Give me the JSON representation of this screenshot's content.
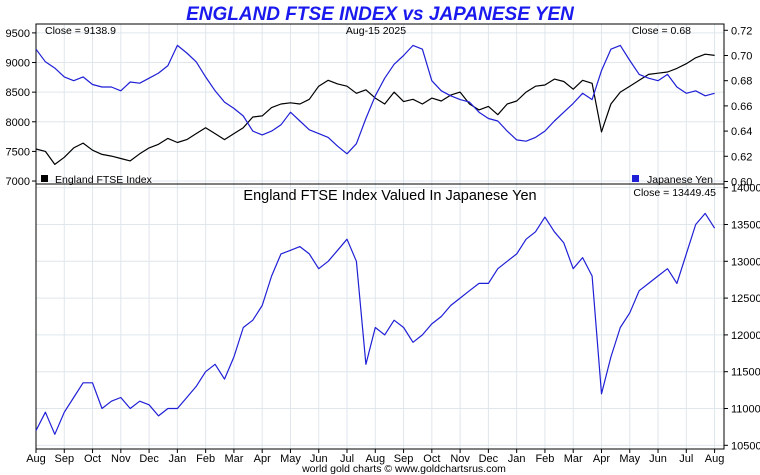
{
  "title": "ENGLAND FTSE INDEX vs JAPANESE YEN",
  "footer": "world gold charts © www.goldchartsrus.com",
  "chart_data": [
    {
      "type": "line",
      "panel": "top",
      "date_label": "Aug-15  2025",
      "left_close": "Close = 9138.9",
      "right_close": "Close = 0.68",
      "y_left": {
        "ticks": [
          7000,
          7500,
          8000,
          8500,
          9000,
          9500
        ],
        "ylim": [
          6950,
          9650
        ]
      },
      "y_right": {
        "ticks": [
          "0.60",
          "0.62",
          "0.64",
          "0.66",
          "0.68",
          "0.70",
          "0.72"
        ],
        "ylim": [
          0.598,
          0.725
        ]
      },
      "legend": "bottom",
      "series": [
        {
          "name": "England FTSE Index",
          "axis": "left",
          "color": "#000000",
          "values": [
            [
              0,
              7540
            ],
            [
              2,
              7500
            ],
            [
              4,
              7280
            ],
            [
              6,
              7400
            ],
            [
              8,
              7560
            ],
            [
              10,
              7640
            ],
            [
              12,
              7520
            ],
            [
              14,
              7450
            ],
            [
              16,
              7420
            ],
            [
              18,
              7380
            ],
            [
              20,
              7340
            ],
            [
              22,
              7460
            ],
            [
              24,
              7560
            ],
            [
              26,
              7620
            ],
            [
              28,
              7720
            ],
            [
              30,
              7650
            ],
            [
              32,
              7700
            ],
            [
              34,
              7800
            ],
            [
              36,
              7900
            ],
            [
              38,
              7800
            ],
            [
              40,
              7700
            ],
            [
              42,
              7800
            ],
            [
              44,
              7900
            ],
            [
              46,
              8080
            ],
            [
              48,
              8100
            ],
            [
              50,
              8240
            ],
            [
              52,
              8300
            ],
            [
              54,
              8320
            ],
            [
              56,
              8300
            ],
            [
              58,
              8380
            ],
            [
              60,
              8600
            ],
            [
              62,
              8700
            ],
            [
              64,
              8640
            ],
            [
              66,
              8600
            ],
            [
              68,
              8480
            ],
            [
              70,
              8540
            ],
            [
              72,
              8400
            ],
            [
              74,
              8300
            ],
            [
              76,
              8500
            ],
            [
              78,
              8340
            ],
            [
              80,
              8380
            ],
            [
              82,
              8300
            ],
            [
              84,
              8400
            ],
            [
              86,
              8350
            ],
            [
              88,
              8450
            ],
            [
              90,
              8500
            ],
            [
              92,
              8300
            ],
            [
              94,
              8200
            ],
            [
              96,
              8260
            ],
            [
              98,
              8120
            ],
            [
              100,
              8300
            ],
            [
              102,
              8350
            ],
            [
              104,
              8500
            ],
            [
              106,
              8600
            ],
            [
              108,
              8620
            ],
            [
              110,
              8720
            ],
            [
              112,
              8680
            ],
            [
              114,
              8550
            ],
            [
              116,
              8700
            ],
            [
              118,
              8650
            ],
            [
              120,
              7830
            ],
            [
              122,
              8300
            ],
            [
              124,
              8500
            ],
            [
              126,
              8600
            ],
            [
              128,
              8700
            ],
            [
              130,
              8800
            ],
            [
              132,
              8820
            ],
            [
              134,
              8840
            ],
            [
              136,
              8900
            ],
            [
              138,
              8980
            ],
            [
              140,
              9080
            ],
            [
              142,
              9140
            ],
            [
              144,
              9120
            ]
          ]
        },
        {
          "name": "Japanese Yen",
          "axis": "right",
          "color": "#1f1fd6",
          "values": [
            [
              0,
              0.705
            ],
            [
              2,
              0.695
            ],
            [
              4,
              0.69
            ],
            [
              6,
              0.683
            ],
            [
              8,
              0.68
            ],
            [
              10,
              0.683
            ],
            [
              12,
              0.677
            ],
            [
              14,
              0.675
            ],
            [
              16,
              0.675
            ],
            [
              18,
              0.672
            ],
            [
              20,
              0.679
            ],
            [
              22,
              0.678
            ],
            [
              24,
              0.682
            ],
            [
              26,
              0.686
            ],
            [
              28,
              0.692
            ],
            [
              30,
              0.708
            ],
            [
              32,
              0.702
            ],
            [
              34,
              0.695
            ],
            [
              36,
              0.683
            ],
            [
              38,
              0.672
            ],
            [
              40,
              0.663
            ],
            [
              42,
              0.658
            ],
            [
              44,
              0.652
            ],
            [
              46,
              0.64
            ],
            [
              48,
              0.637
            ],
            [
              50,
              0.64
            ],
            [
              52,
              0.645
            ],
            [
              54,
              0.655
            ],
            [
              56,
              0.648
            ],
            [
              58,
              0.641
            ],
            [
              60,
              0.638
            ],
            [
              62,
              0.635
            ],
            [
              64,
              0.628
            ],
            [
              66,
              0.622
            ],
            [
              68,
              0.63
            ],
            [
              70,
              0.65
            ],
            [
              72,
              0.668
            ],
            [
              74,
              0.682
            ],
            [
              76,
              0.693
            ],
            [
              78,
              0.7
            ],
            [
              80,
              0.708
            ],
            [
              82,
              0.705
            ],
            [
              84,
              0.68
            ],
            [
              86,
              0.672
            ],
            [
              88,
              0.668
            ],
            [
              90,
              0.665
            ],
            [
              92,
              0.663
            ],
            [
              94,
              0.655
            ],
            [
              96,
              0.65
            ],
            [
              98,
              0.648
            ],
            [
              100,
              0.64
            ],
            [
              102,
              0.633
            ],
            [
              104,
              0.632
            ],
            [
              106,
              0.635
            ],
            [
              108,
              0.64
            ],
            [
              110,
              0.648
            ],
            [
              112,
              0.655
            ],
            [
              114,
              0.662
            ],
            [
              116,
              0.67
            ],
            [
              118,
              0.665
            ],
            [
              120,
              0.688
            ],
            [
              122,
              0.705
            ],
            [
              124,
              0.708
            ],
            [
              126,
              0.696
            ],
            [
              128,
              0.685
            ],
            [
              130,
              0.682
            ],
            [
              132,
              0.68
            ],
            [
              134,
              0.685
            ],
            [
              136,
              0.675
            ],
            [
              138,
              0.67
            ],
            [
              140,
              0.672
            ],
            [
              142,
              0.668
            ],
            [
              144,
              0.67
            ]
          ]
        }
      ]
    },
    {
      "type": "line",
      "panel": "bottom",
      "title": "England FTSE Index Valued In Japanese Yen",
      "right_close": "Close = 13449.45",
      "y_right": {
        "ticks": [
          10500,
          11000,
          11500,
          12000,
          12500,
          13000,
          13500,
          14000
        ],
        "ylim": [
          10450,
          14050
        ]
      },
      "series": [
        {
          "name": "",
          "color": "#1f1fd6",
          "values": [
            [
              0,
              10700
            ],
            [
              2,
              10950
            ],
            [
              4,
              10650
            ],
            [
              6,
              10950
            ],
            [
              8,
              11150
            ],
            [
              10,
              11350
            ],
            [
              12,
              11350
            ],
            [
              14,
              11000
            ],
            [
              16,
              11100
            ],
            [
              18,
              11150
            ],
            [
              20,
              11000
            ],
            [
              22,
              11100
            ],
            [
              24,
              11050
            ],
            [
              26,
              10900
            ],
            [
              28,
              11000
            ],
            [
              30,
              11000
            ],
            [
              32,
              11150
            ],
            [
              34,
              11300
            ],
            [
              36,
              11500
            ],
            [
              38,
              11600
            ],
            [
              40,
              11400
            ],
            [
              42,
              11700
            ],
            [
              44,
              12100
            ],
            [
              46,
              12200
            ],
            [
              48,
              12400
            ],
            [
              50,
              12800
            ],
            [
              52,
              13100
            ],
            [
              54,
              13150
            ],
            [
              56,
              13200
            ],
            [
              58,
              13100
            ],
            [
              60,
              12900
            ],
            [
              62,
              13000
            ],
            [
              64,
              13150
            ],
            [
              66,
              13300
            ],
            [
              68,
              13000
            ],
            [
              70,
              11600
            ],
            [
              72,
              12100
            ],
            [
              74,
              12000
            ],
            [
              76,
              12200
            ],
            [
              78,
              12100
            ],
            [
              80,
              11900
            ],
            [
              82,
              12000
            ],
            [
              84,
              12150
            ],
            [
              86,
              12250
            ],
            [
              88,
              12400
            ],
            [
              90,
              12500
            ],
            [
              92,
              12600
            ],
            [
              94,
              12700
            ],
            [
              96,
              12700
            ],
            [
              98,
              12900
            ],
            [
              100,
              13000
            ],
            [
              102,
              13100
            ],
            [
              104,
              13300
            ],
            [
              106,
              13400
            ],
            [
              108,
              13600
            ],
            [
              110,
              13400
            ],
            [
              112,
              13250
            ],
            [
              114,
              12900
            ],
            [
              116,
              13050
            ],
            [
              118,
              12800
            ],
            [
              120,
              11200
            ],
            [
              122,
              11700
            ],
            [
              124,
              12100
            ],
            [
              126,
              12300
            ],
            [
              128,
              12600
            ],
            [
              130,
              12700
            ],
            [
              132,
              12800
            ],
            [
              134,
              12900
            ],
            [
              136,
              12700
            ],
            [
              138,
              13100
            ],
            [
              140,
              13500
            ],
            [
              142,
              13650
            ],
            [
              144,
              13450
            ]
          ]
        }
      ]
    }
  ],
  "x_axis": {
    "months": [
      "Aug",
      "Sep",
      "Oct",
      "Nov",
      "Dec",
      "Jan",
      "Feb",
      "Mar",
      "Apr",
      "May",
      "Jun",
      "Jul",
      "Aug",
      "Sep",
      "Oct",
      "Nov",
      "Dec",
      "Jan",
      "Feb",
      "Mar",
      "Apr",
      "May",
      "Jun",
      "Jul",
      "Aug"
    ],
    "month_starts": [
      0,
      6,
      12,
      18,
      24,
      30,
      36,
      42,
      48,
      54,
      60,
      66,
      72,
      78,
      84,
      90,
      96,
      102,
      108,
      114,
      120,
      126,
      132,
      138,
      144
    ],
    "range": [
      0,
      146
    ]
  }
}
